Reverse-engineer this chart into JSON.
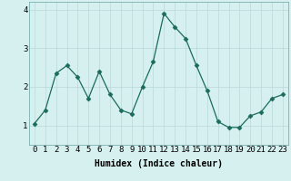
{
  "x": [
    0,
    1,
    2,
    3,
    4,
    5,
    6,
    7,
    8,
    9,
    10,
    11,
    12,
    13,
    14,
    15,
    16,
    17,
    18,
    19,
    20,
    21,
    22,
    23
  ],
  "y": [
    1.05,
    1.4,
    2.35,
    2.55,
    2.25,
    1.7,
    2.4,
    1.8,
    1.4,
    1.3,
    2.0,
    2.65,
    3.9,
    3.55,
    3.25,
    2.55,
    1.9,
    1.1,
    0.95,
    0.95,
    1.25,
    1.35,
    1.7,
    1.8
  ],
  "line_color": "#1a6b5a",
  "marker": "D",
  "marker_size": 2.5,
  "bg_color": "#d6f0f0",
  "grid_color": "#b8d8d8",
  "xlabel": "Humidex (Indice chaleur)",
  "ylim": [
    0.5,
    4.2
  ],
  "xlim": [
    -0.5,
    23.5
  ],
  "yticks": [
    1,
    2,
    3,
    4
  ],
  "xticks": [
    0,
    1,
    2,
    3,
    4,
    5,
    6,
    7,
    8,
    9,
    10,
    11,
    12,
    13,
    14,
    15,
    16,
    17,
    18,
    19,
    20,
    21,
    22,
    23
  ],
  "xlabel_fontsize": 7,
  "tick_fontsize": 6.5,
  "linewidth": 0.9
}
